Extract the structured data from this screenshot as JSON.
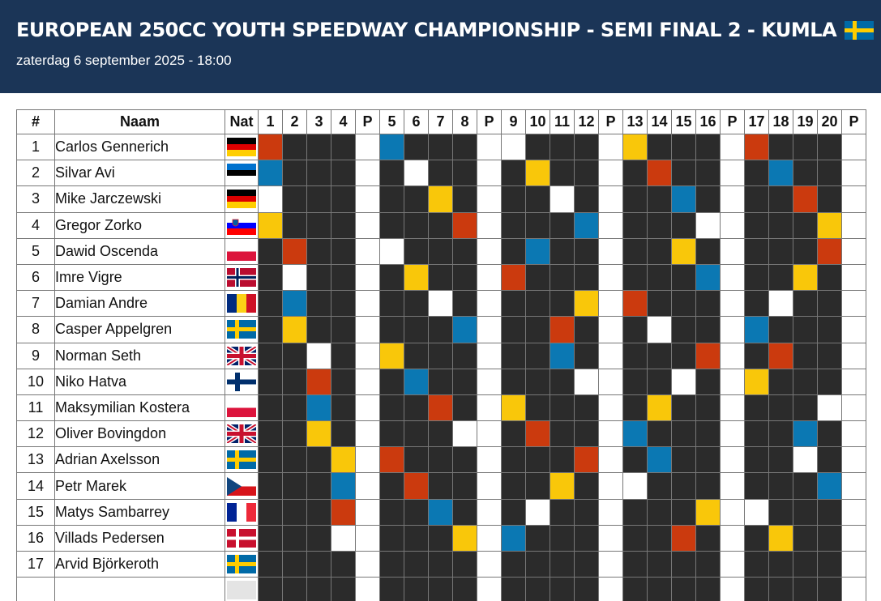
{
  "header": {
    "title": "EUROPEAN 250CC YOUTH SPEEDWAY CHAMPIONSHIP - SEMI FINAL 2 - KUMLA",
    "title_flag_icon": "flag-se",
    "subtitle": "zaterdag 6 september 2025 - 18:00"
  },
  "table": {
    "headers": {
      "num": "#",
      "name": "Naam",
      "nat": "Nat",
      "heats": [
        "1",
        "2",
        "3",
        "4",
        "P",
        "5",
        "6",
        "7",
        "8",
        "P",
        "9",
        "10",
        "11",
        "12",
        "P",
        "13",
        "14",
        "15",
        "16",
        "P",
        "17",
        "18",
        "19",
        "20",
        "P"
      ]
    },
    "colors": {
      "red": "#cb3a0e",
      "blue": "#0b78b3",
      "yellow": "#f9c70a",
      "white": "#ffffff",
      "dark": "#2b2b2b",
      "header_bg": "#1b3557"
    },
    "riders": [
      {
        "num": "1",
        "name": "Carlos Gennerich",
        "nat": "de"
      },
      {
        "num": "2",
        "name": "Silvar Avi",
        "nat": "ee"
      },
      {
        "num": "3",
        "name": "Mike Jarczewski",
        "nat": "de"
      },
      {
        "num": "4",
        "name": "Gregor Zorko",
        "nat": "si"
      },
      {
        "num": "5",
        "name": "Dawid Oscenda",
        "nat": "pl"
      },
      {
        "num": "6",
        "name": "Imre Vigre",
        "nat": "no"
      },
      {
        "num": "7",
        "name": "Damian Andre",
        "nat": "ro"
      },
      {
        "num": "8",
        "name": "Casper Appelgren",
        "nat": "se"
      },
      {
        "num": "9",
        "name": "Norman Seth",
        "nat": "gb"
      },
      {
        "num": "10",
        "name": "Niko Hatva",
        "nat": "fi"
      },
      {
        "num": "11",
        "name": "Maksymilian Kostera",
        "nat": "pl"
      },
      {
        "num": "12",
        "name": "Oliver Bovingdon",
        "nat": "gb"
      },
      {
        "num": "13",
        "name": "Adrian Axelsson",
        "nat": "se"
      },
      {
        "num": "14",
        "name": "Petr Marek",
        "nat": "cz"
      },
      {
        "num": "15",
        "name": "Matys Sambarrey",
        "nat": "fr"
      },
      {
        "num": "16",
        "name": "Villads Pedersen",
        "nat": "dk"
      },
      {
        "num": "17",
        "name": "Arvid Björkeroth",
        "nat": "se"
      },
      {
        "num": "",
        "name": "",
        "nat": "blank"
      }
    ],
    "gate_colors_legend": "R=red, B=blue, W=white, Y=yellow, .=no ride",
    "heat_gates": [
      "R...B......Y...R...",
      "B....W...Y...R...B..",
      "W.....Y....W...B...R.",
      "Y.......R....B....W...Y",
      ".R..W.....B.....Y.......R",
      ".W...Y....R......B.....Y.",
      "..B.....W........Y...R.....W..",
      "..Y........B.......R.....W....B",
      "...W......Y.........B......R....R",
      "...R........B...W.........W.......Y",
      "...B...........R....Y..........Y...........W",
      "...Y............W.........R..........B......B",
      "....Y......R.........R..........B.......W",
      "....B.......R............Y.......W...........B",
      "....R.........B..........W.......................Y....W",
      "....W................Y.....B...........R.............Y",
      ""
    ],
    "grid": [
      [
        "R",
        ".",
        ".",
        ".",
        "P",
        "B",
        ".",
        ".",
        ".",
        "P",
        "W",
        ".",
        ".",
        ".",
        "P",
        "Y",
        ".",
        ".",
        ".",
        "P",
        "R",
        ".",
        ".",
        ".",
        "P"
      ],
      [
        "B",
        ".",
        ".",
        ".",
        "P",
        ".",
        "W",
        ".",
        ".",
        "P",
        ".",
        "Y",
        ".",
        ".",
        "P",
        ".",
        "R",
        ".",
        ".",
        "P",
        ".",
        "B",
        ".",
        ".",
        "P"
      ],
      [
        "W",
        ".",
        ".",
        ".",
        "P",
        ".",
        ".",
        "Y",
        ".",
        "P",
        ".",
        ".",
        "W",
        ".",
        "P",
        ".",
        ".",
        "B",
        ".",
        "P",
        ".",
        ".",
        "R",
        ".",
        "P"
      ],
      [
        "Y",
        ".",
        ".",
        ".",
        "P",
        ".",
        ".",
        ".",
        "R",
        "P",
        ".",
        ".",
        ".",
        "B",
        "P",
        ".",
        ".",
        ".",
        "W",
        "P",
        ".",
        ".",
        ".",
        "Y",
        "P"
      ],
      [
        ".",
        "R",
        ".",
        ".",
        "P",
        "W",
        ".",
        ".",
        ".",
        "P",
        ".",
        "B",
        ".",
        ".",
        "P",
        ".",
        ".",
        "Y",
        ".",
        "P",
        ".",
        ".",
        ".",
        "R",
        "P"
      ],
      [
        ".",
        "W",
        ".",
        ".",
        "P",
        ".",
        "Y",
        ".",
        ".",
        "P",
        "R",
        ".",
        ".",
        ".",
        "P",
        ".",
        ".",
        ".",
        "B",
        "P",
        ".",
        ".",
        "Y",
        ".",
        "P"
      ],
      [
        ".",
        "B",
        ".",
        ".",
        "P",
        ".",
        ".",
        "W",
        ".",
        "P",
        ".",
        ".",
        ".",
        "Y",
        "P",
        "R",
        ".",
        ".",
        ".",
        "P",
        ".",
        "W",
        ".",
        ".",
        "P"
      ],
      [
        ".",
        "Y",
        ".",
        ".",
        "P",
        ".",
        ".",
        ".",
        "B",
        "P",
        ".",
        ".",
        "R",
        ".",
        "P",
        ".",
        "W",
        ".",
        ".",
        "P",
        "B",
        ".",
        ".",
        ".",
        "P"
      ],
      [
        ".",
        ".",
        "W",
        ".",
        "P",
        "Y",
        ".",
        ".",
        ".",
        "P",
        ".",
        ".",
        "B",
        ".",
        "P",
        ".",
        ".",
        ".",
        "R",
        "P",
        ".",
        "R",
        ".",
        ".",
        "P"
      ],
      [
        ".",
        ".",
        "R",
        ".",
        "P",
        ".",
        "B",
        ".",
        ".",
        "P",
        ".",
        ".",
        ".",
        "W",
        "P",
        ".",
        ".",
        "W",
        ".",
        "P",
        "Y",
        ".",
        ".",
        ".",
        "P"
      ],
      [
        ".",
        ".",
        "B",
        ".",
        "P",
        ".",
        ".",
        "R",
        ".",
        "P",
        "Y",
        ".",
        ".",
        ".",
        "P",
        ".",
        "Y",
        ".",
        ".",
        "P",
        ".",
        ".",
        ".",
        "W",
        "P"
      ],
      [
        ".",
        ".",
        "Y",
        ".",
        "P",
        ".",
        ".",
        ".",
        "W",
        "P",
        ".",
        "R",
        ".",
        ".",
        "P",
        "B",
        ".",
        ".",
        ".",
        "P",
        ".",
        ".",
        "B",
        ".",
        "P"
      ],
      [
        ".",
        ".",
        ".",
        "Y",
        "P",
        "R",
        ".",
        ".",
        ".",
        "P",
        ".",
        ".",
        ".",
        "R",
        "P",
        ".",
        "B",
        ".",
        ".",
        "P",
        ".",
        ".",
        "W",
        ".",
        "P"
      ],
      [
        ".",
        ".",
        ".",
        "B",
        "P",
        ".",
        "R",
        ".",
        ".",
        "P",
        ".",
        ".",
        "Y",
        ".",
        "P",
        "W",
        ".",
        ".",
        ".",
        "P",
        ".",
        ".",
        ".",
        "B",
        "P"
      ],
      [
        ".",
        ".",
        ".",
        "R",
        "P",
        ".",
        ".",
        "B",
        ".",
        "P",
        ".",
        "W",
        ".",
        ".",
        "P",
        ".",
        ".",
        ".",
        "Y",
        "P",
        "W",
        ".",
        ".",
        ".",
        "P"
      ],
      [
        ".",
        ".",
        ".",
        "W",
        "P",
        ".",
        ".",
        ".",
        "Y",
        "P",
        "B",
        ".",
        ".",
        ".",
        "P",
        ".",
        ".",
        "R",
        ".",
        "P",
        ".",
        "Y",
        ".",
        ".",
        "P"
      ],
      [
        ".",
        ".",
        ".",
        ".",
        "P",
        ".",
        ".",
        ".",
        ".",
        "P",
        ".",
        ".",
        ".",
        ".",
        "P",
        ".",
        ".",
        ".",
        ".",
        "P",
        ".",
        ".",
        ".",
        ".",
        "P"
      ],
      [
        ".",
        ".",
        ".",
        ".",
        "P",
        ".",
        ".",
        ".",
        ".",
        "P",
        ".",
        ".",
        ".",
        ".",
        "P",
        ".",
        ".",
        ".",
        ".",
        "P",
        ".",
        ".",
        ".",
        ".",
        "P"
      ]
    ]
  }
}
